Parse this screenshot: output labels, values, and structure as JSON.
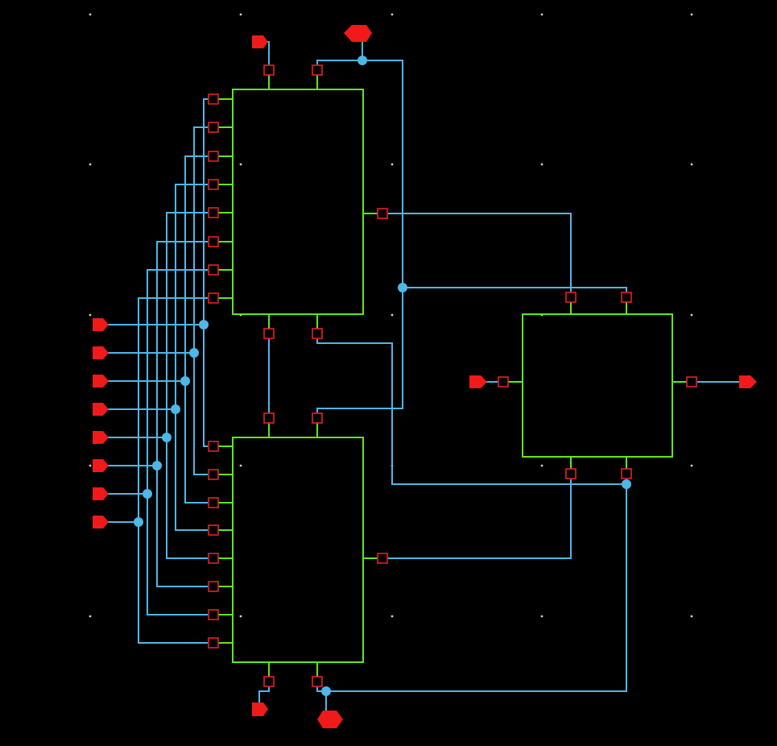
{
  "colors": {
    "background": "#000000",
    "wire": "#4db8e8",
    "block_outline": "#5ee81a",
    "pin_marker": "#e82020",
    "io_port": "#f01a1a",
    "junction": "#4db8e8",
    "grid_dot": "#cfcfcf"
  },
  "diagram": {
    "kind": "schematic",
    "blocks": [
      {
        "id": "block-top",
        "inputs": 8,
        "top_pins": 2,
        "bottom_pins": 2,
        "outputs": 1
      },
      {
        "id": "block-bottom",
        "inputs": 8,
        "top_pins": 2,
        "bottom_pins": 2,
        "outputs": 1
      },
      {
        "id": "block-right",
        "inputs": 1,
        "top_pins": 2,
        "bottom_pins": 2,
        "outputs": 1
      }
    ],
    "input_bus_ports": 8,
    "icons": {
      "input_port": "pentagon-port-icon",
      "output_port": "pentagon-port-icon",
      "bidir_port": "hexagon-port-icon",
      "junction": "junction-dot-icon"
    }
  }
}
